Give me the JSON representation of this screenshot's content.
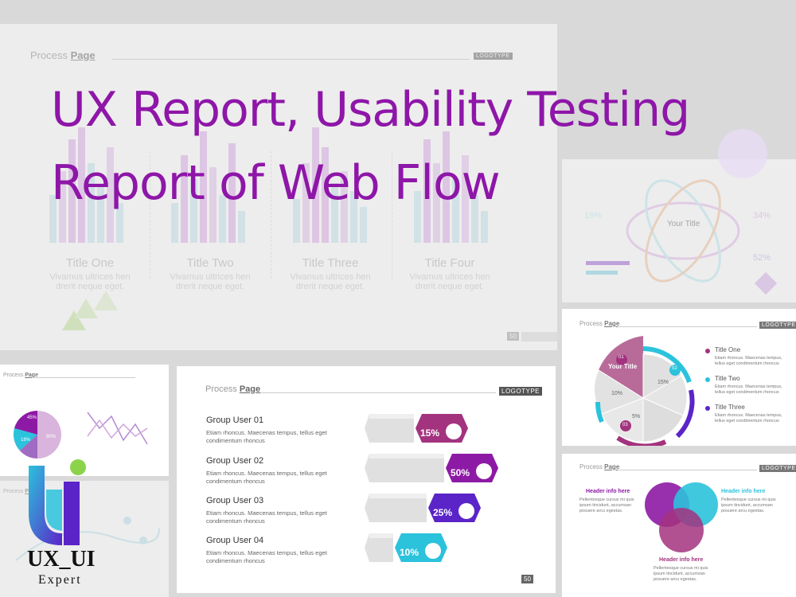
{
  "hero": {
    "line1": "UX Report, Usability Testing",
    "line2": "Report of Web Flow"
  },
  "bg_slide": {
    "process_page": "Process",
    "process_page_bold": "Page",
    "logotype": "LOGOTYPE",
    "columns": [
      {
        "title": "Title One",
        "sub1": "Vivamus ultrices hen",
        "sub2": "drerit neque eget."
      },
      {
        "title": "Title Two",
        "sub1": "Vivamus ultrices hen",
        "sub2": "drerit neque eget."
      },
      {
        "title": "Title Three",
        "sub1": "Vivamus ultrices hen",
        "sub2": "drerit neque eget."
      },
      {
        "title": "Title Four",
        "sub1": "Vivamus ultrices hen",
        "sub2": "drerit neque eget."
      }
    ],
    "page_number": "50"
  },
  "center_slide": {
    "process": "Process",
    "page": "Page",
    "logotype": "LOGOTYPE",
    "page_number": "50",
    "groups": [
      {
        "title": "Group User 01",
        "text1": "Etiam rhoncus. Maecenas tempus, tellus eget",
        "text2": "condimentum rhoncus",
        "percent": "15%",
        "color": "#a3337e",
        "icon": "chart-icon"
      },
      {
        "title": "Group User 02",
        "text1": "Etiam rhoncus. Maecenas tempus, tellus eget",
        "text2": "condimentum rhoncus",
        "percent": "50%",
        "color": "#8d1aa5",
        "icon": "person-icon"
      },
      {
        "title": "Group User 03",
        "text1": "Etiam rhoncus. Maecenas tempus, tellus eget",
        "text2": "condimentum rhoncus",
        "percent": "25%",
        "color": "#5b24c8",
        "icon": "document-icon"
      },
      {
        "title": "Group User 04",
        "text1": "Etiam rhoncus. Maecenas tempus, tellus eget",
        "text2": "condimentum rhoncus",
        "percent": "10%",
        "color": "#2bc2dc",
        "icon": "pie-icon"
      }
    ]
  },
  "right_top_slide": {
    "center_title": "Your Title",
    "p1": "18%",
    "p2": "34%",
    "p3": "52%"
  },
  "right_mid_slide": {
    "process": "Process",
    "page": "Page",
    "logotype": "LOGOTYPE",
    "center_title": "Your Title",
    "labels": [
      "01",
      "02",
      "03"
    ],
    "percents": [
      "10%",
      "15%",
      "5%"
    ],
    "legend": [
      {
        "title": "Title One",
        "text1": "Etiam rhoncus. Maecenas tempus,",
        "text2": "tellus eget condimentum rhoncus",
        "color": "#a3337e"
      },
      {
        "title": "Title Two",
        "text1": "Etiam rhoncus. Maecenas tempus,",
        "text2": "tellus eget condimentum rhoncus",
        "color": "#2bc2dc"
      },
      {
        "title": "Title Three",
        "text1": "Etiam rhoncus. Maecenas tempus,",
        "text2": "tellus eget condimentum rhoncus",
        "color": "#5b24c8"
      }
    ]
  },
  "right_bot_slide": {
    "process": "Process",
    "page": "Page",
    "logotype": "LOGOTYPE",
    "left_title": "Header info here",
    "left_text1": "Pellentesque cursus mi quis",
    "left_text2": "ipsum tincidunt, accumsan",
    "left_text3": "posuere arcu egestas.",
    "right_title": "Header info here",
    "right_text1": "Pellentesque cursus mi quis",
    "right_text2": "ipsum tincidunt, accumsan",
    "right_text3": "posuere arcu egestas.",
    "bottom_title": "Header info here",
    "bottom_text1": "Pellentesque cursus mi quis",
    "bottom_text2": "ipsum tincidunt, accumsan",
    "bottom_text3": "posuere arcu egestas."
  },
  "left_slide": {
    "process": "Process",
    "page": "Page",
    "p1": "45%",
    "p2": "45%",
    "p3": "18%",
    "p4": "80%"
  },
  "logo": {
    "main": "UX_UI",
    "sub": "Expert"
  }
}
